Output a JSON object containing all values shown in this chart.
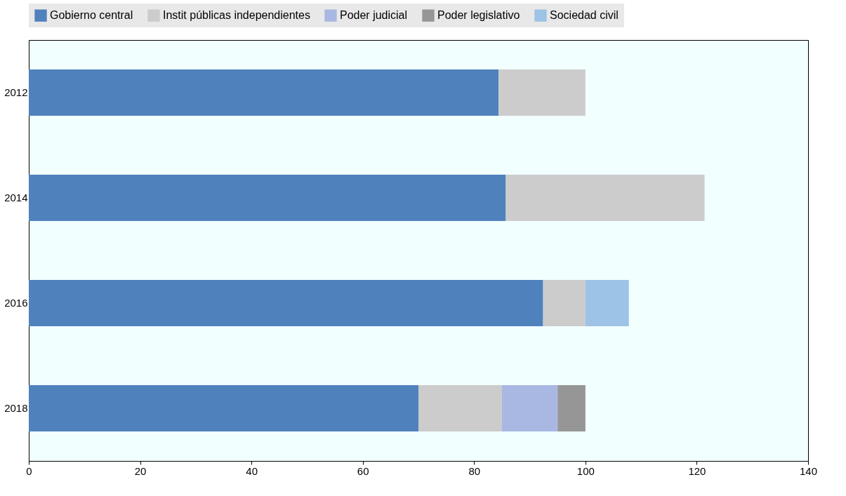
{
  "chart_data": {
    "type": "bar",
    "orientation": "horizontal",
    "stacked": true,
    "categories": [
      "2012",
      "2014",
      "2016",
      "2018"
    ],
    "series": [
      {
        "name": "Gobierno central",
        "color": "#4f81bd",
        "values": [
          84.4,
          85.7,
          92.4,
          70
        ]
      },
      {
        "name": "Instit públicas independientes",
        "color": "#cccccc",
        "values": [
          15.6,
          35.7,
          7.6,
          15
        ]
      },
      {
        "name": "Poder judicial",
        "color": "#a8b8e2",
        "values": [
          null,
          null,
          null,
          10
        ]
      },
      {
        "name": "Poder legislativo",
        "color": "#969696",
        "values": [
          null,
          null,
          null,
          5
        ]
      },
      {
        "name": "Sociedad civil",
        "color": "#9dc3e6",
        "values": [
          null,
          null,
          7.8,
          null
        ]
      }
    ],
    "xlim": [
      0,
      140
    ],
    "xticks": [
      0,
      20,
      40,
      60,
      80,
      100,
      120,
      140
    ],
    "grid": false,
    "legend": "top"
  }
}
